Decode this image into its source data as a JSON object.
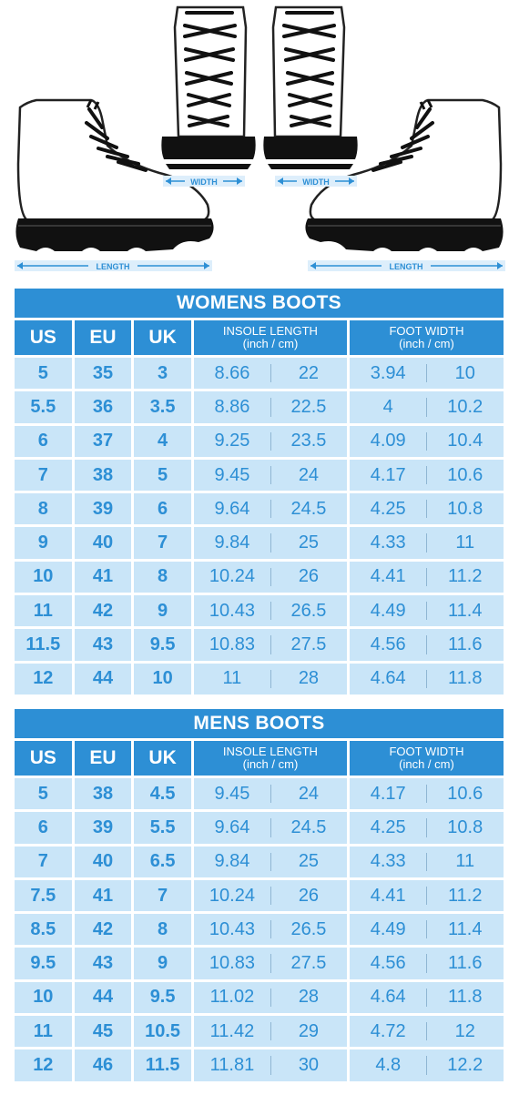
{
  "measure_labels": {
    "width": "WIDTH",
    "length": "LENGTH"
  },
  "columns": {
    "us": "US",
    "eu": "EU",
    "uk": "UK",
    "insole": "INSOLE LENGTH",
    "foot": "FOOT WIDTH",
    "units": "(inch / cm)"
  },
  "women": {
    "title": "WOMENS BOOTS",
    "rows": [
      [
        "5",
        "35",
        "3",
        "8.66",
        "22",
        "3.94",
        "10"
      ],
      [
        "5.5",
        "36",
        "3.5",
        "8.86",
        "22.5",
        "4",
        "10.2"
      ],
      [
        "6",
        "37",
        "4",
        "9.25",
        "23.5",
        "4.09",
        "10.4"
      ],
      [
        "7",
        "38",
        "5",
        "9.45",
        "24",
        "4.17",
        "10.6"
      ],
      [
        "8",
        "39",
        "6",
        "9.64",
        "24.5",
        "4.25",
        "10.8"
      ],
      [
        "9",
        "40",
        "7",
        "9.84",
        "25",
        "4.33",
        "11"
      ],
      [
        "10",
        "41",
        "8",
        "10.24",
        "26",
        "4.41",
        "11.2"
      ],
      [
        "11",
        "42",
        "9",
        "10.43",
        "26.5",
        "4.49",
        "11.4"
      ],
      [
        "11.5",
        "43",
        "9.5",
        "10.83",
        "27.5",
        "4.56",
        "11.6"
      ],
      [
        "12",
        "44",
        "10",
        "11",
        "28",
        "4.64",
        "11.8"
      ]
    ]
  },
  "men": {
    "title": "MENS BOOTS",
    "rows": [
      [
        "5",
        "38",
        "4.5",
        "9.45",
        "24",
        "4.17",
        "10.6"
      ],
      [
        "6",
        "39",
        "5.5",
        "9.64",
        "24.5",
        "4.25",
        "10.8"
      ],
      [
        "7",
        "40",
        "6.5",
        "9.84",
        "25",
        "4.33",
        "11"
      ],
      [
        "7.5",
        "41",
        "7",
        "10.24",
        "26",
        "4.41",
        "11.2"
      ],
      [
        "8.5",
        "42",
        "8",
        "10.43",
        "26.5",
        "4.49",
        "11.4"
      ],
      [
        "9.5",
        "43",
        "9",
        "10.83",
        "27.5",
        "4.56",
        "11.6"
      ],
      [
        "10",
        "44",
        "9.5",
        "11.02",
        "28",
        "4.64",
        "11.8"
      ],
      [
        "11",
        "45",
        "10.5",
        "11.42",
        "29",
        "4.72",
        "12"
      ],
      [
        "12",
        "46",
        "11.5",
        "11.81",
        "30",
        "4.8",
        "12.2"
      ]
    ]
  }
}
